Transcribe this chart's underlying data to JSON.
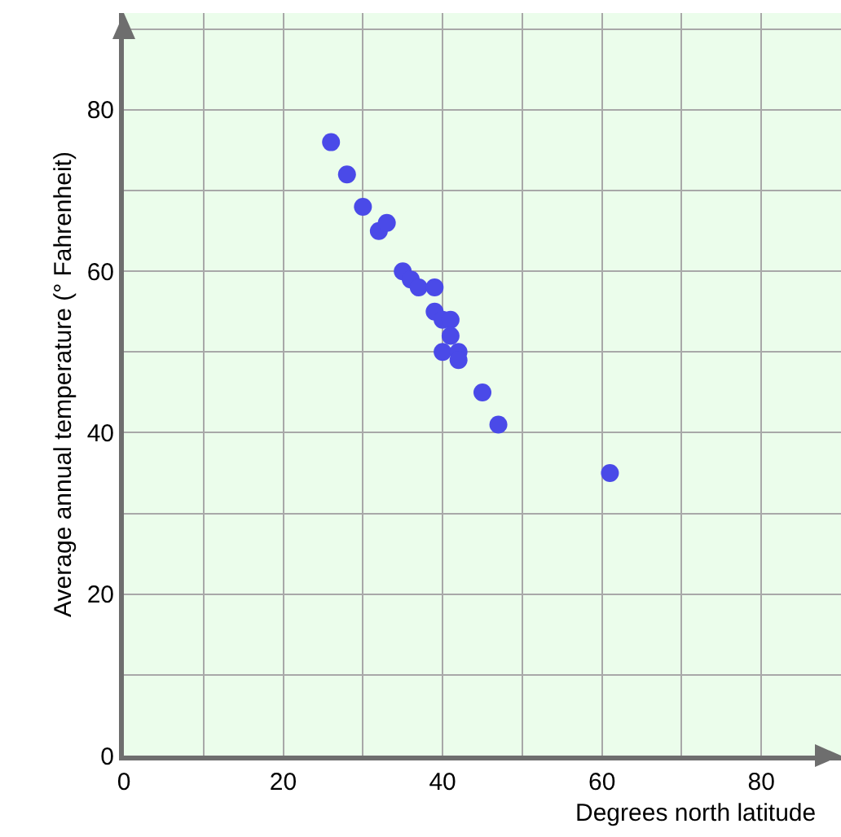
{
  "chart_data": {
    "type": "scatter",
    "xlabel": "Degrees north latitude",
    "ylabel": "Average annual temperature (° Fahrenheit)",
    "x": [
      26,
      28,
      30,
      32,
      33,
      35,
      36,
      37,
      39,
      39,
      40,
      41,
      41,
      40,
      42,
      42,
      45,
      47,
      61
    ],
    "series": [
      {
        "color": "#4a4ae8",
        "values": [
          76,
          72,
          68,
          65,
          66,
          60,
          59,
          58,
          58,
          55,
          54,
          54,
          52,
          50,
          50,
          49,
          45,
          41,
          35
        ]
      }
    ],
    "xlim": [
      0,
      90
    ],
    "ylim": [
      0,
      92
    ],
    "xticks": [
      0,
      {
        "value": 10,
        "label": null
      },
      20,
      {
        "value": 30,
        "label": null
      },
      40,
      {
        "value": 50,
        "label": null
      },
      60,
      {
        "value": 70,
        "label": null
      },
      80
    ],
    "yticks": [
      0,
      {
        "value": 10,
        "label": null
      },
      20,
      {
        "value": 30,
        "label": null
      },
      40,
      {
        "value": 50,
        "label": null
      },
      60,
      {
        "value": 70,
        "label": null
      },
      80,
      {
        "value": 90,
        "label": null
      }
    ],
    "grid": true,
    "marker": "circle"
  }
}
